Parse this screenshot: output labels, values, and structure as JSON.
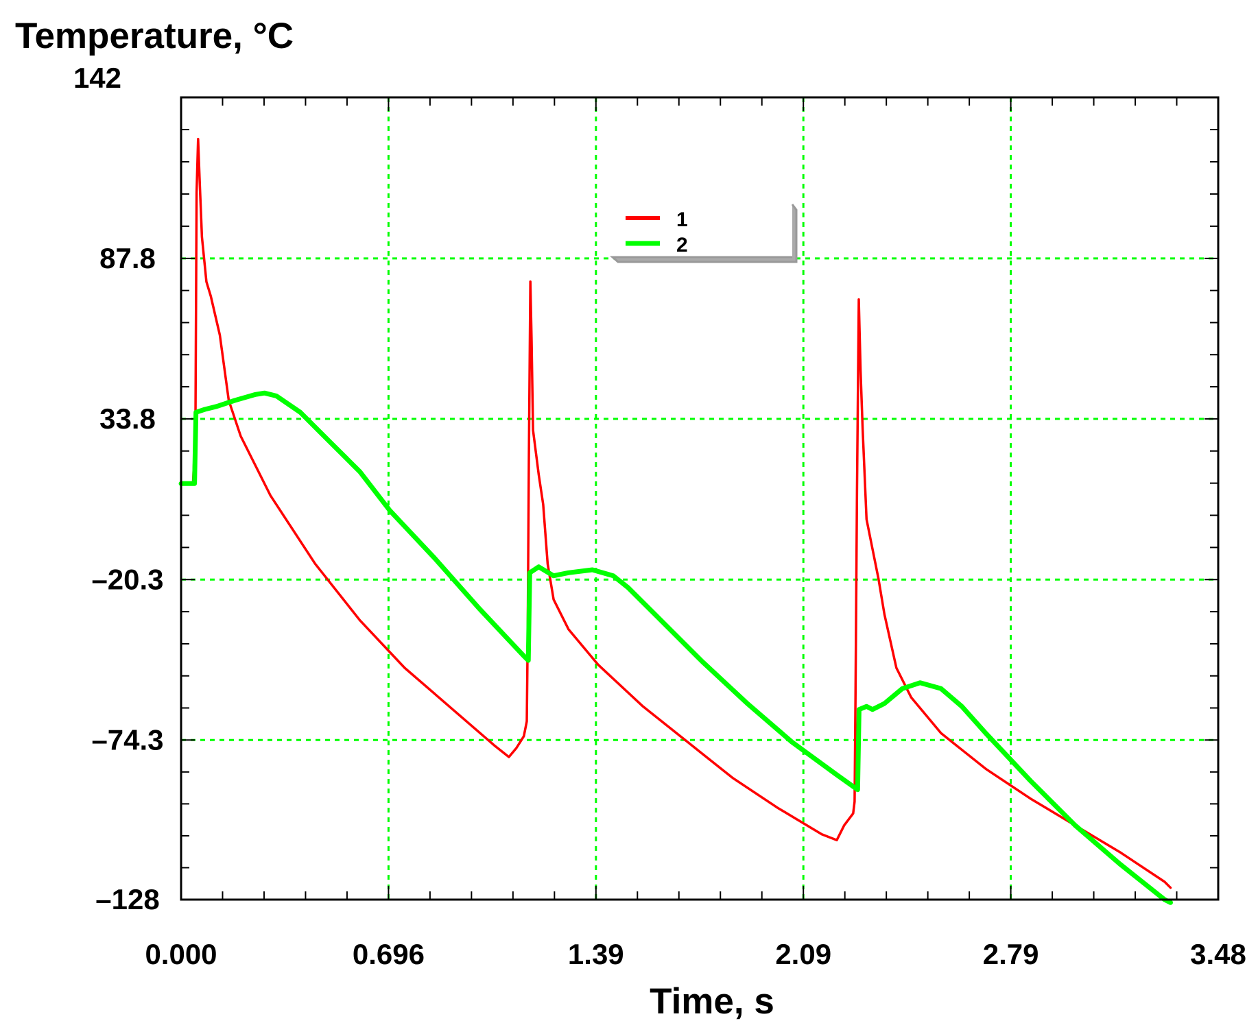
{
  "chart_data": {
    "type": "line",
    "ylabel": "Temperature, °C",
    "xlabel": "Time, s",
    "x_ticks": [
      {
        "value": 0.0,
        "label": "0.000"
      },
      {
        "value": 0.696,
        "label": "0.696"
      },
      {
        "value": 1.392,
        "label": "1.39"
      },
      {
        "value": 2.088,
        "label": "2.09"
      },
      {
        "value": 2.784,
        "label": "2.79"
      },
      {
        "value": 3.48,
        "label": "3.48"
      }
    ],
    "y_ticks": [
      {
        "value": -128,
        "label": "–128"
      },
      {
        "value": -74.3,
        "label": "–74.3"
      },
      {
        "value": -20.3,
        "label": "–20.3"
      },
      {
        "value": 33.8,
        "label": "33.8"
      },
      {
        "value": 87.8,
        "label": "87.8"
      },
      {
        "value": 142,
        "label": "142"
      }
    ],
    "xlim": [
      0,
      3.48
    ],
    "ylim": [
      -128,
      142
    ],
    "grid": true,
    "legend_position": "top-center",
    "series": [
      {
        "name": "1",
        "color": "#ff0000",
        "points": [
          [
            0.0,
            12.0
          ],
          [
            0.04,
            12.0
          ],
          [
            0.048,
            30.0
          ],
          [
            0.052,
            110.0
          ],
          [
            0.057,
            128.0
          ],
          [
            0.062,
            115.0
          ],
          [
            0.07,
            95.0
          ],
          [
            0.085,
            80.0
          ],
          [
            0.1,
            75.0
          ],
          [
            0.13,
            62.0
          ],
          [
            0.16,
            40.0
          ],
          [
            0.2,
            28.0
          ],
          [
            0.3,
            8.0
          ],
          [
            0.45,
            -15.0
          ],
          [
            0.6,
            -34.0
          ],
          [
            0.75,
            -50.0
          ],
          [
            0.9,
            -63.0
          ],
          [
            1.05,
            -76.0
          ],
          [
            1.1,
            -80.0
          ],
          [
            1.125,
            -77.0
          ],
          [
            1.15,
            -73.0
          ],
          [
            1.16,
            -68.0
          ],
          [
            1.163,
            -40.0
          ],
          [
            1.167,
            20.0
          ],
          [
            1.172,
            80.0
          ],
          [
            1.176,
            60.0
          ],
          [
            1.181,
            30.0
          ],
          [
            1.2,
            15.0
          ],
          [
            1.215,
            5.0
          ],
          [
            1.23,
            -15.0
          ],
          [
            1.25,
            -27.0
          ],
          [
            1.3,
            -37.0
          ],
          [
            1.4,
            -49.0
          ],
          [
            1.55,
            -63.0
          ],
          [
            1.7,
            -75.0
          ],
          [
            1.85,
            -87.0
          ],
          [
            2.0,
            -97.0
          ],
          [
            2.15,
            -106.0
          ],
          [
            2.2,
            -108.0
          ],
          [
            2.225,
            -103.0
          ],
          [
            2.255,
            -99.0
          ],
          [
            2.26,
            -95.0
          ],
          [
            2.263,
            -60.0
          ],
          [
            2.268,
            10.0
          ],
          [
            2.274,
            74.0
          ],
          [
            2.28,
            50.0
          ],
          [
            2.287,
            30.0
          ],
          [
            2.3,
            0.0
          ],
          [
            2.32,
            -10.0
          ],
          [
            2.34,
            -20.0
          ],
          [
            2.36,
            -32.0
          ],
          [
            2.4,
            -50.0
          ],
          [
            2.45,
            -60.0
          ],
          [
            2.55,
            -72.0
          ],
          [
            2.7,
            -84.0
          ],
          [
            2.85,
            -94.0
          ],
          [
            3.0,
            -103.0
          ],
          [
            3.15,
            -112.0
          ],
          [
            3.3,
            -122.0
          ],
          [
            3.32,
            -124.0
          ]
        ]
      },
      {
        "name": "2",
        "color": "#00ff00",
        "points": [
          [
            0.0,
            12.0
          ],
          [
            0.045,
            12.0
          ],
          [
            0.05,
            36.0
          ],
          [
            0.08,
            37.0
          ],
          [
            0.12,
            38.0
          ],
          [
            0.18,
            40.0
          ],
          [
            0.25,
            42.0
          ],
          [
            0.28,
            42.5
          ],
          [
            0.32,
            41.5
          ],
          [
            0.4,
            36.0
          ],
          [
            0.5,
            26.0
          ],
          [
            0.6,
            16.0
          ],
          [
            0.7,
            3.0
          ],
          [
            0.85,
            -13.0
          ],
          [
            1.0,
            -30.0
          ],
          [
            1.15,
            -46.0
          ],
          [
            1.165,
            -47.5
          ],
          [
            1.17,
            -18.0
          ],
          [
            1.2,
            -16.0
          ],
          [
            1.25,
            -19.0
          ],
          [
            1.3,
            -18.0
          ],
          [
            1.38,
            -17.0
          ],
          [
            1.45,
            -19.0
          ],
          [
            1.5,
            -23.0
          ],
          [
            1.6,
            -33.0
          ],
          [
            1.75,
            -48.0
          ],
          [
            1.9,
            -62.0
          ],
          [
            2.05,
            -75.0
          ],
          [
            2.2,
            -86.0
          ],
          [
            2.27,
            -91.0
          ],
          [
            2.275,
            -64.0
          ],
          [
            2.3,
            -63.0
          ],
          [
            2.32,
            -64.0
          ],
          [
            2.36,
            -62.0
          ],
          [
            2.42,
            -57.0
          ],
          [
            2.48,
            -55.0
          ],
          [
            2.55,
            -57.0
          ],
          [
            2.62,
            -63.0
          ],
          [
            2.7,
            -72.0
          ],
          [
            2.85,
            -88.0
          ],
          [
            3.0,
            -103.0
          ],
          [
            3.15,
            -116.0
          ],
          [
            3.3,
            -128.0
          ],
          [
            3.32,
            -129.0
          ]
        ]
      }
    ]
  }
}
